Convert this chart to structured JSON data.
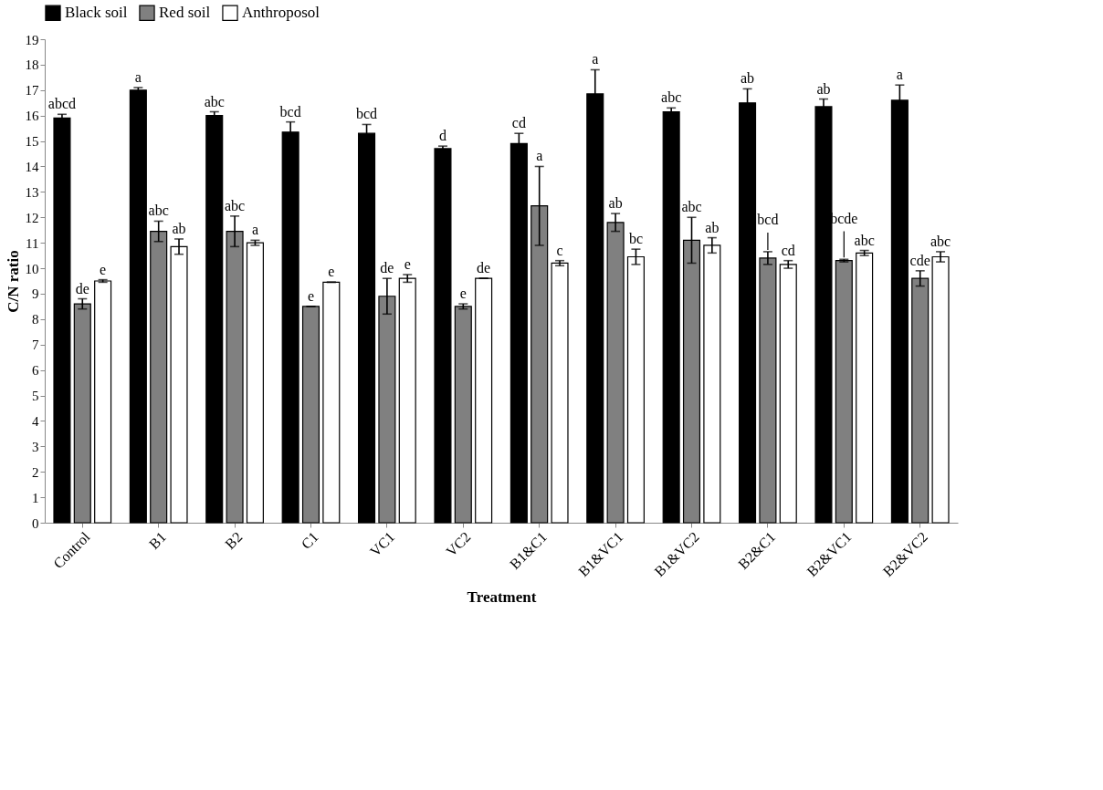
{
  "chart_data": {
    "type": "bar",
    "xlabel": "Treatment",
    "ylabel": "C/N ratio",
    "categories": [
      "Control",
      "B1",
      "B2",
      "C1",
      "VC1",
      "VC2",
      "B1&C1",
      "B1&VC1",
      "B1&VC2",
      "B2&C1",
      "B2&VC1",
      "B2&VC2"
    ],
    "series": [
      {
        "name": "Black soil",
        "color": "#000000",
        "values": [
          15.9,
          17.0,
          16.0,
          15.35,
          15.3,
          14.7,
          14.9,
          16.85,
          16.15,
          16.5,
          16.35,
          16.6
        ],
        "errors": [
          0.15,
          0.1,
          0.15,
          0.4,
          0.35,
          0.1,
          0.4,
          0.95,
          0.15,
          0.55,
          0.3,
          0.6
        ],
        "value_labels": [
          "abcd",
          "a",
          "abc",
          "bcd",
          "bcd",
          "d",
          "cd",
          "a",
          "abc",
          "ab",
          "ab",
          "a"
        ]
      },
      {
        "name": "Red soil",
        "color": "#808080",
        "values": [
          8.6,
          11.45,
          11.45,
          8.5,
          8.9,
          8.5,
          12.45,
          11.8,
          11.1,
          10.4,
          10.3,
          9.6
        ],
        "errors": [
          0.2,
          0.4,
          0.6,
          0,
          0.7,
          0.1,
          1.55,
          0.35,
          0.9,
          0.25,
          0.05,
          0.3
        ],
        "value_labels": [
          "de",
          "abc",
          "abc",
          "e",
          "de",
          "e",
          "a",
          "ab",
          "abc",
          "bcd",
          "bcde",
          "cde"
        ]
      },
      {
        "name": "Anthroposol",
        "color": "#ffffff",
        "values": [
          9.5,
          10.85,
          11.0,
          9.45,
          9.6,
          9.6,
          10.2,
          10.45,
          10.9,
          10.15,
          10.6,
          10.45
        ],
        "errors": [
          0.05,
          0.3,
          0.1,
          0,
          0.15,
          0,
          0.1,
          0.3,
          0.3,
          0.15,
          0.1,
          0.2
        ],
        "value_labels": [
          "e",
          "ab",
          "a",
          "e",
          "e",
          "de",
          "c",
          "bc",
          "ab",
          "cd",
          "abc",
          "abc"
        ]
      }
    ],
    "ylim": [
      0,
      19
    ],
    "yticks": [
      0,
      1,
      2,
      3,
      4,
      5,
      6,
      7,
      8,
      9,
      10,
      11,
      12,
      13,
      14,
      15,
      16,
      17,
      18,
      19
    ],
    "grid": false,
    "legend": "top"
  }
}
